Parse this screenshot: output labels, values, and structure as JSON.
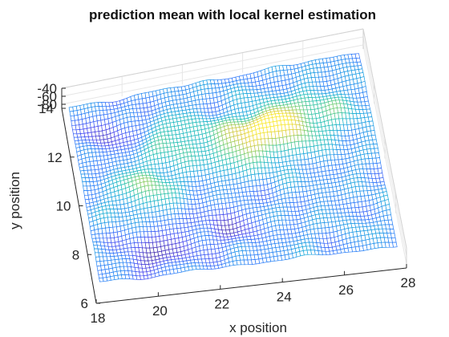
{
  "chart_data": {
    "type": "surface",
    "title": "prediction mean with local kernel estimation",
    "xlabel": "x position",
    "ylabel": "y position",
    "zlabel": "",
    "xlim": [
      18,
      28
    ],
    "ylim": [
      6,
      14
    ],
    "zlim": [
      -90,
      -40
    ],
    "x_ticks": [
      "18",
      "20",
      "22",
      "24",
      "26",
      "28"
    ],
    "y_ticks": [
      "6",
      "8",
      "10",
      "12",
      "14"
    ],
    "z_ticks": [
      "-80",
      "-60",
      "-40"
    ],
    "x_tick_values": [
      18,
      20,
      22,
      24,
      26,
      28
    ],
    "y_tick_values": [
      6,
      8,
      10,
      12,
      14
    ],
    "z_tick_values": [
      -80,
      -60,
      -40
    ],
    "colormap": "parula",
    "grid": true,
    "peaks": [
      {
        "x": 24.8,
        "y": 11.3,
        "z": -46
      },
      {
        "x": 23.4,
        "y": 11.0,
        "z": -52
      },
      {
        "x": 20.2,
        "y": 9.9,
        "z": -58
      },
      {
        "x": 21.4,
        "y": 11.6,
        "z": -60
      },
      {
        "x": 26.4,
        "y": 11.6,
        "z": -62
      }
    ],
    "troughs": [
      {
        "x": 20.2,
        "y": 7.6,
        "z": -88
      },
      {
        "x": 19.4,
        "y": 12.4,
        "z": -84
      },
      {
        "x": 22.6,
        "y": 8.2,
        "z": -84
      }
    ]
  },
  "colors": {
    "low": "#3e26a8",
    "mid": "#16b1c8",
    "high": "#f8e824",
    "axis": "#262626",
    "grid": "#e6e6e6"
  }
}
